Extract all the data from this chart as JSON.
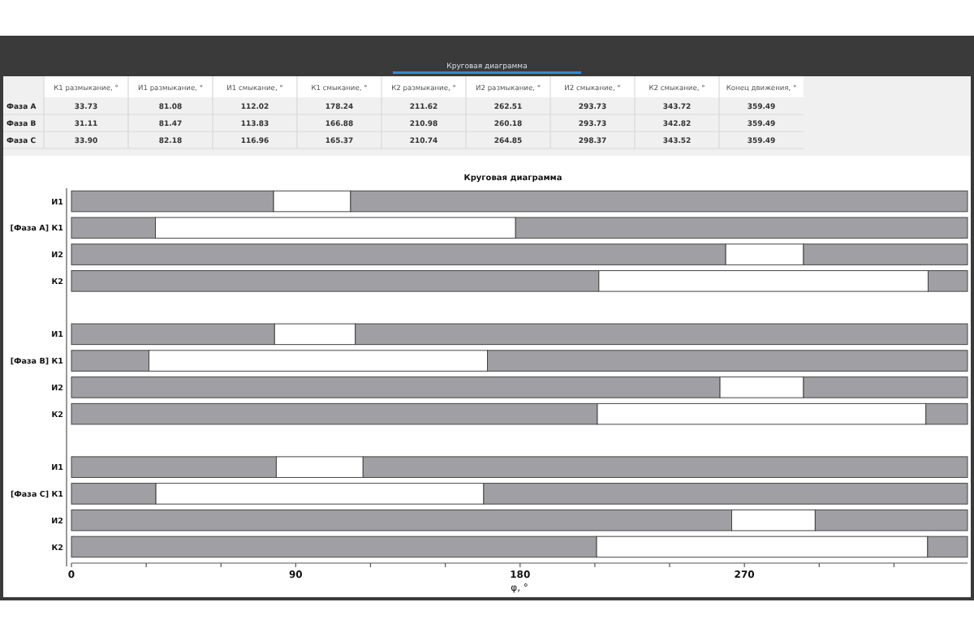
{
  "chart_data": [
    {
      "type": "other",
      "title": "Круговая диаграмма",
      "categories": [
        "К1 размыкание, °",
        "И1 размыкание, °",
        "И1 смыкание, °",
        "К1 смыкание, °",
        "К2 размыкание, °",
        "И2 размыкание, °",
        "И2 смыкание, °",
        "К2 смыкание, °",
        "Конец движения, °"
      ],
      "y_categories": [
        "Фаза А",
        "Фаза В",
        "Фаза С"
      ],
      "cells": [
        [
          "33.73",
          "81.08",
          "112.02",
          "178.24",
          "211.62",
          "262.51",
          "293.73",
          "343.72",
          "359.49"
        ],
        [
          "31.11",
          "81.47",
          "113.83",
          "166.88",
          "210.98",
          "260.18",
          "293.73",
          "342.82",
          "359.49"
        ],
        [
          "33.90",
          "82.18",
          "116.96",
          "165.37",
          "210.74",
          "264.85",
          "298.37",
          "343.52",
          "359.49"
        ]
      ]
    },
    {
      "type": "bar",
      "title": "Круговая диаграмма",
      "orientation": "horizontal",
      "stacked": true,
      "xlabel": "φ, °",
      "categories": [
        "И1",
        "[Фаза А]  К1",
        "И2",
        "К2",
        null,
        "И1",
        "[Фаза В]  К1",
        "И2",
        "К2",
        null,
        "И1",
        "[Фаза С]  К1",
        "И2",
        "К2"
      ],
      "series": [
        {
          "color": "#a0a0a4",
          "values": [
            81.1,
            33.7,
            262.5,
            211.6,
            null,
            81.5,
            31.1,
            260.2,
            211.0,
            null,
            82.2,
            33.9,
            264.9,
            210.7
          ]
        },
        {
          "color": "#ffffff",
          "values": [
            30.9,
            144.5,
            31.2,
            132.1,
            null,
            32.4,
            135.8,
            33.5,
            131.8,
            null,
            34.8,
            131.5,
            33.5,
            132.8
          ]
        },
        {
          "color": "#a0a0a4",
          "values": [
            247.5,
            181.3,
            65.8,
            15.8,
            null,
            245.6,
            192.6,
            65.8,
            16.7,
            null,
            242.5,
            194.1,
            61.1,
            16.0
          ]
        }
      ],
      "xlim": [
        0,
        359.5
      ],
      "xticks": [
        0,
        {
          "value": 30,
          "label": null
        },
        {
          "value": 60,
          "label": null
        },
        90,
        {
          "value": 120,
          "label": null
        },
        {
          "value": 150,
          "label": null
        },
        180,
        {
          "value": 210,
          "label": null
        },
        {
          "value": 240,
          "label": null
        },
        270,
        {
          "value": 300,
          "label": null
        },
        {
          "value": 330,
          "label": null
        }
      ]
    }
  ]
}
